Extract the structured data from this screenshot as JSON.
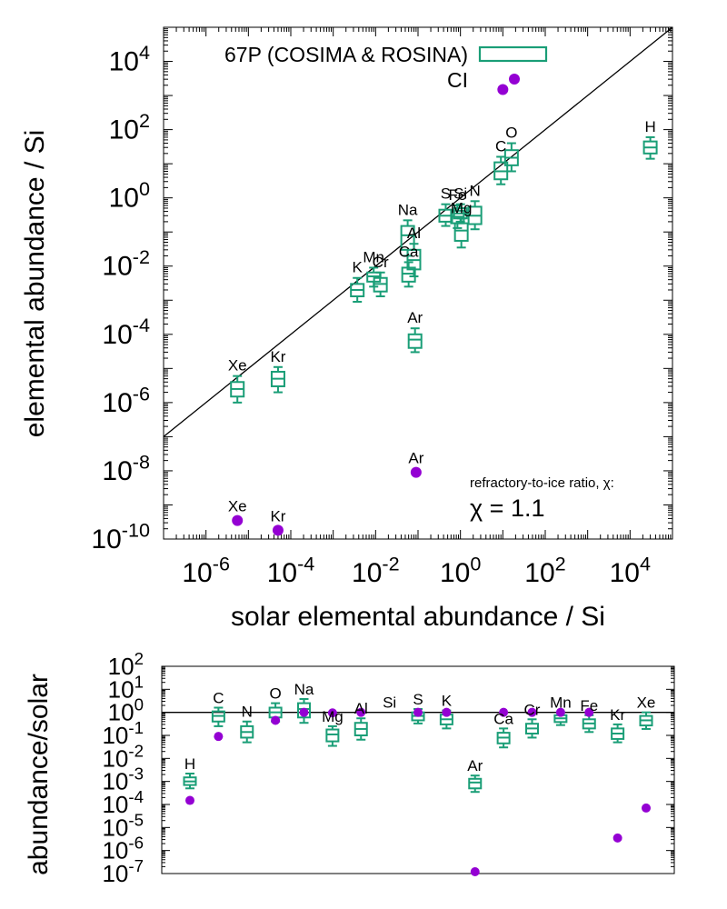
{
  "chart_data": [
    {
      "type": "scatter",
      "x_scale": "log",
      "y_scale": "log",
      "xlabel": "solar elemental abundance / Si",
      "ylabel": "elemental abundance / Si",
      "xlim": [
        1e-07,
        100000
      ],
      "ylim": [
        1e-10,
        100000
      ],
      "x_ticks": [
        "10-6",
        "10-4",
        "10-2",
        "100",
        "102",
        "104"
      ],
      "y_ticks": [
        "10-10",
        "10-8",
        "10-6",
        "10-4",
        "10-2",
        "100",
        "102",
        "104"
      ],
      "legend_position": "top-left",
      "legend": {
        "comet_label": "67P (COSIMA & ROSINA)",
        "ci_label": "CI"
      },
      "annotation": {
        "line1": "refractory-to-ice ratio, χ:",
        "line2": "χ = 1.1"
      },
      "reference_line": "y = x",
      "colors": {
        "comet": "#1a9e77",
        "ci": "#9400d3",
        "line": "#000000"
      },
      "series_comet": [
        {
          "label": "H",
          "x": 30000,
          "med": 30,
          "q1": 20,
          "q3": 45,
          "lo": 14,
          "hi": 60
        },
        {
          "label": "C",
          "x": 9,
          "med": 6,
          "q1": 3.5,
          "q3": 11,
          "lo": 2.5,
          "hi": 16
        },
        {
          "label": "O",
          "x": 16,
          "med": 15,
          "q1": 9,
          "q3": 25,
          "lo": 6,
          "hi": 40
        },
        {
          "label": "N",
          "x": 2.2,
          "med": 0.3,
          "q1": 0.17,
          "q3": 0.55,
          "lo": 0.12,
          "hi": 0.8
        },
        {
          "label": "Si",
          "x": 1.0,
          "med": 0.35,
          "q1": 0.25,
          "q3": 0.5,
          "lo": 0.2,
          "hi": 0.65
        },
        {
          "label": "S",
          "x": 0.45,
          "med": 0.3,
          "q1": 0.2,
          "q3": 0.45,
          "lo": 0.15,
          "hi": 0.65
        },
        {
          "label": "Fe",
          "x": 0.85,
          "med": 0.28,
          "q1": 0.18,
          "q3": 0.42,
          "lo": 0.13,
          "hi": 0.6
        },
        {
          "label": "Mg",
          "x": 1.05,
          "med": 0.11,
          "q1": 0.055,
          "q3": 0.18,
          "lo": 0.035,
          "hi": 0.25
        },
        {
          "label": "Na",
          "x": 0.057,
          "med": 0.08,
          "q1": 0.03,
          "q3": 0.15,
          "lo": 0.02,
          "hi": 0.22
        },
        {
          "label": "Al",
          "x": 0.08,
          "med": 0.015,
          "q1": 0.008,
          "q3": 0.03,
          "lo": 0.005,
          "hi": 0.045
        },
        {
          "label": "Ca",
          "x": 0.06,
          "med": 0.006,
          "q1": 0.0035,
          "q3": 0.009,
          "lo": 0.0025,
          "hi": 0.013
        },
        {
          "label": "Cr",
          "x": 0.013,
          "med": 0.003,
          "q1": 0.0018,
          "q3": 0.0045,
          "lo": 0.0013,
          "hi": 0.0065
        },
        {
          "label": "Mn",
          "x": 0.009,
          "med": 0.005,
          "q1": 0.0035,
          "q3": 0.0065,
          "lo": 0.0025,
          "hi": 0.009
        },
        {
          "label": "K",
          "x": 0.0037,
          "med": 0.002,
          "q1": 0.0013,
          "q3": 0.003,
          "lo": 0.0009,
          "hi": 0.0045
        },
        {
          "label": "Ar",
          "x": 0.085,
          "med": 7e-05,
          "q1": 4e-05,
          "q3": 0.0001,
          "lo": 3e-05,
          "hi": 0.00015
        },
        {
          "label": "Kr",
          "x": 5e-05,
          "med": 5e-06,
          "q1": 3e-06,
          "q3": 8e-06,
          "lo": 2e-06,
          "hi": 1.1e-05
        },
        {
          "label": "Xe",
          "x": 5.5e-06,
          "med": 2.5e-06,
          "q1": 1.5e-06,
          "q3": 4e-06,
          "lo": 1e-06,
          "hi": 6e-06
        }
      ],
      "series_ci": [
        {
          "label": "",
          "x": 10,
          "y": 1500
        },
        {
          "label": "Ar",
          "x": 0.09,
          "y": 9e-09
        },
        {
          "label": "Xe",
          "x": 5.5e-06,
          "y": 3.5e-10
        },
        {
          "label": "Kr",
          "x": 5e-05,
          "y": 1.8e-10
        }
      ]
    },
    {
      "type": "scatter",
      "y_scale": "log",
      "ylabel": "abundance/solar",
      "ylim": [
        1e-07,
        100
      ],
      "y_ticks": [
        "10-7",
        "10-6",
        "10-5",
        "10-4",
        "10-3",
        "10-2",
        "10-1",
        "100",
        "101",
        "102"
      ],
      "reference_line": "y = 1",
      "categories": [
        "H",
        "C",
        "N",
        "O",
        "Na",
        "Mg",
        "Al",
        "Si",
        "S",
        "K",
        "Ar",
        "Ca",
        "Cr",
        "Mn",
        "Fe",
        "Kr",
        "Xe"
      ],
      "series_comet": [
        {
          "label": "H",
          "med": 0.001,
          "q1": 0.0007,
          "q3": 0.0015,
          "lo": 0.0005,
          "hi": 0.0022
        },
        {
          "label": "C",
          "med": 0.7,
          "q1": 0.4,
          "q3": 1.1,
          "lo": 0.25,
          "hi": 1.6
        },
        {
          "label": "N",
          "med": 0.14,
          "q1": 0.08,
          "q3": 0.25,
          "lo": 0.05,
          "hi": 0.4
        },
        {
          "label": "O",
          "med": 1.0,
          "q1": 0.6,
          "q3": 1.6,
          "lo": 0.4,
          "hi": 2.5
        },
        {
          "label": "Na",
          "med": 1.4,
          "q1": 0.6,
          "q3": 2.5,
          "lo": 0.35,
          "hi": 3.8
        },
        {
          "label": "Mg",
          "med": 0.11,
          "q1": 0.055,
          "q3": 0.18,
          "lo": 0.035,
          "hi": 0.25
        },
        {
          "label": "Al",
          "med": 0.19,
          "q1": 0.1,
          "q3": 0.35,
          "lo": 0.065,
          "hi": 0.55
        },
        {
          "label": "Si",
          "med": 1.0,
          "q1": 1.0,
          "q3": 1.0,
          "lo": 1.0,
          "hi": 1.0
        },
        {
          "label": "S",
          "med": 0.7,
          "q1": 0.45,
          "q3": 1.0,
          "lo": 0.33,
          "hi": 1.4
        },
        {
          "label": "K",
          "med": 0.5,
          "q1": 0.3,
          "q3": 0.8,
          "lo": 0.2,
          "hi": 1.2
        },
        {
          "label": "Ar",
          "med": 0.0009,
          "q1": 0.0005,
          "q3": 0.0013,
          "lo": 0.00035,
          "hi": 0.0018
        },
        {
          "label": "Ca",
          "med": 0.08,
          "q1": 0.045,
          "q3": 0.13,
          "lo": 0.03,
          "hi": 0.2
        },
        {
          "label": "Cr",
          "med": 0.2,
          "q1": 0.12,
          "q3": 0.32,
          "lo": 0.08,
          "hi": 0.5
        },
        {
          "label": "Mn",
          "med": 0.55,
          "q1": 0.38,
          "q3": 0.75,
          "lo": 0.28,
          "hi": 1.0
        },
        {
          "label": "Fe",
          "med": 0.33,
          "q1": 0.2,
          "q3": 0.5,
          "lo": 0.14,
          "hi": 0.75
        },
        {
          "label": "Kr",
          "med": 0.12,
          "q1": 0.07,
          "q3": 0.2,
          "lo": 0.05,
          "hi": 0.3
        },
        {
          "label": "Xe",
          "med": 0.45,
          "q1": 0.27,
          "q3": 0.7,
          "lo": 0.19,
          "hi": 1.0
        }
      ],
      "series_ci": [
        {
          "label": "H",
          "y": 0.00015
        },
        {
          "label": "C",
          "y": 0.09
        },
        {
          "label": "O",
          "y": 0.45
        },
        {
          "label": "Na",
          "y": 1.0
        },
        {
          "label": "Mg",
          "y": 0.95
        },
        {
          "label": "Al",
          "y": 1.0
        },
        {
          "label": "S",
          "y": 1.0
        },
        {
          "label": "K",
          "y": 1.0
        },
        {
          "label": "Ar",
          "y": 1.2e-07
        },
        {
          "label": "Ca",
          "y": 1.0
        },
        {
          "label": "Cr",
          "y": 1.0
        },
        {
          "label": "Mn",
          "y": 1.0
        },
        {
          "label": "Fe",
          "y": 1.0
        },
        {
          "label": "Kr",
          "y": 3.5e-06
        },
        {
          "label": "Xe",
          "y": 7e-05
        }
      ]
    }
  ]
}
